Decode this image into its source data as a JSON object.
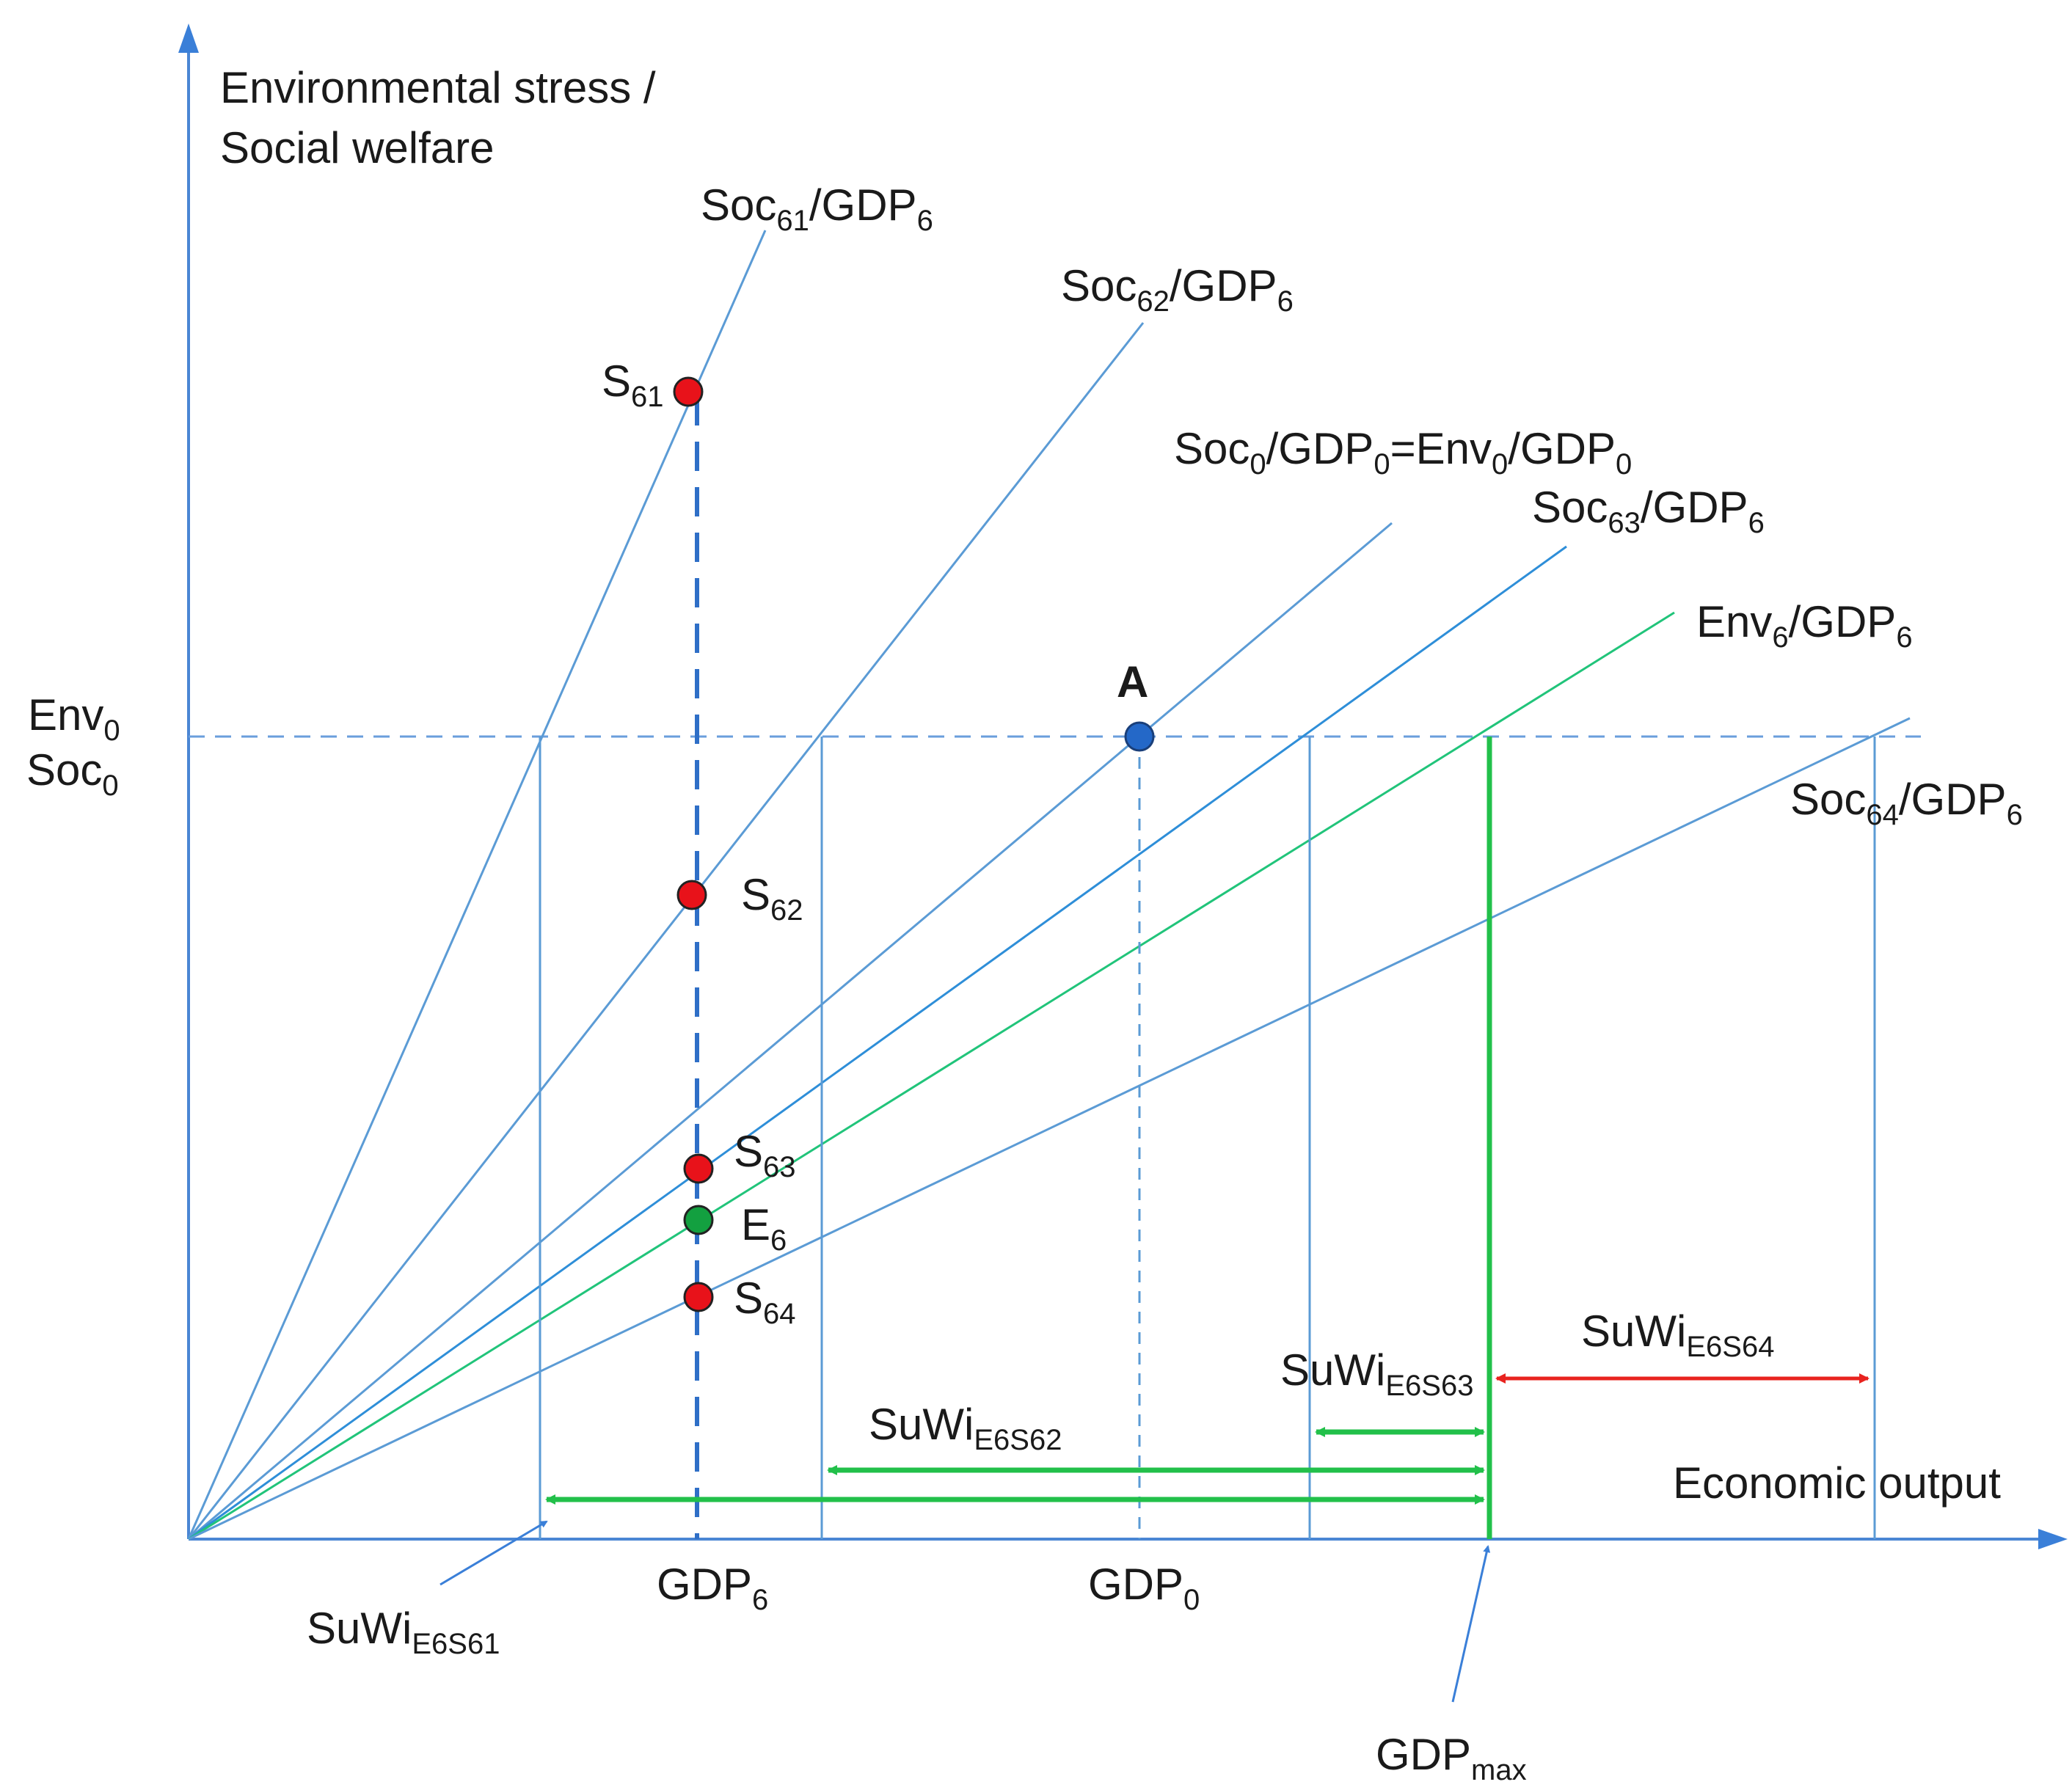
{
  "axes": {
    "y_title_line1": "Environmental stress /",
    "y_title_line2": "Social welfare",
    "x_title": "Economic output",
    "y_level_env": {
      "base": "Env",
      "sub": "0"
    },
    "y_level_soc": {
      "base": "Soc",
      "sub": "0"
    }
  },
  "ray_labels": {
    "soc61": {
      "a": "Soc",
      "a_sub": "61",
      "b": "/GDP",
      "b_sub": "6"
    },
    "soc62": {
      "a": "Soc",
      "a_sub": "62",
      "b": "/GDP",
      "b_sub": "6"
    },
    "soc0": {
      "a": "Soc",
      "a_sub": "0",
      "b": "/GDP",
      "b_sub": "0",
      "c": "=Env",
      "c_sub": "0",
      "d": "/GDP",
      "d_sub": "0"
    },
    "soc63": {
      "a": "Soc",
      "a_sub": "63",
      "b": "/GDP",
      "b_sub": "6"
    },
    "env6": {
      "a": "Env",
      "a_sub": "6",
      "b": "/GDP",
      "b_sub": "6"
    },
    "soc64": {
      "a": "Soc",
      "a_sub": "64",
      "b": "/GDP",
      "b_sub": "6"
    }
  },
  "points": {
    "s61": {
      "base": "S",
      "sub": "61"
    },
    "s62": {
      "base": "S",
      "sub": "62"
    },
    "s63": {
      "base": "S",
      "sub": "63"
    },
    "e6": {
      "base": "E",
      "sub": "6"
    },
    "s64": {
      "base": "S",
      "sub": "64"
    },
    "a": {
      "label": "A"
    }
  },
  "x_markers": {
    "gdp6": {
      "base": "GDP",
      "sub": "6"
    },
    "gdp0": {
      "base": "GDP",
      "sub": "0"
    },
    "gdpmax": {
      "base": "GDP",
      "sub": "max"
    }
  },
  "suwi_labels": {
    "s61": {
      "base": "SuWi",
      "sub": "E6S61"
    },
    "s62": {
      "base": "SuWi",
      "sub": "E6S62"
    },
    "s63": {
      "base": "SuWi",
      "sub": "E6S63"
    },
    "s64": {
      "base": "SuWi",
      "sub": "E6S64"
    }
  },
  "colors": {
    "axis": "#4a86d4",
    "ray": "#5b9bd5",
    "soc63_ray": "#2e8ed8",
    "env_ray": "#21c47a",
    "green": "#22c04a",
    "red_arrow": "#e8231f",
    "red_point": "#e8121a",
    "green_point": "#13a040",
    "blue_point": "#2468c8",
    "gdp6_dash": "#2f6fc7"
  }
}
